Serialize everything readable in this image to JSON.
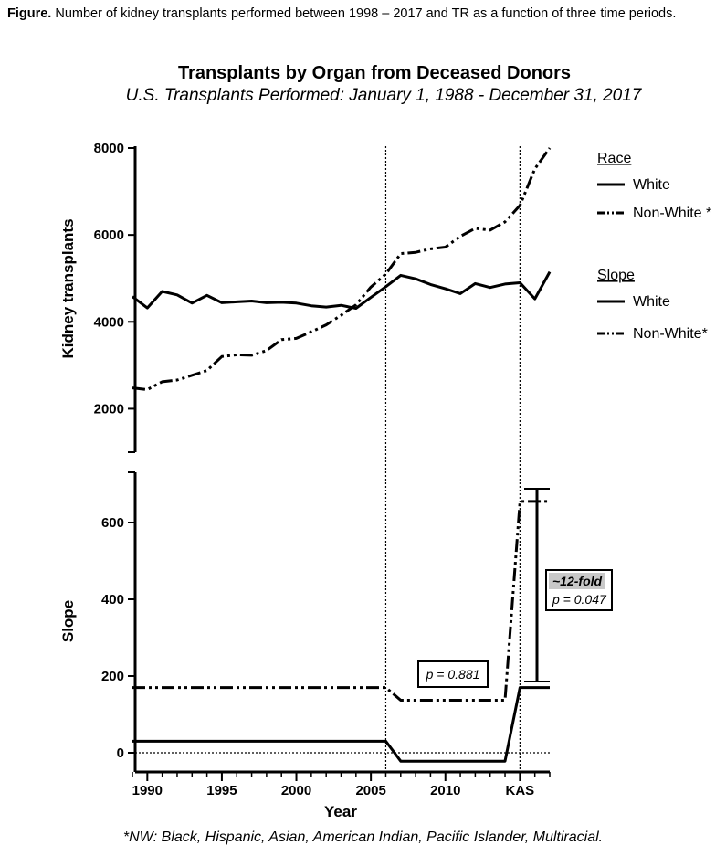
{
  "caption": {
    "label": "Figure.",
    "text": "Number of kidney transplants performed between 1998 – 2017 and TR as a function of three time periods."
  },
  "footnote": "*NW: Black, Hispanic, Asian, American Indian, Pacific Islander, Multiracial.",
  "chart_data": {
    "type": "line",
    "title": "Transplants by Organ from Deceased Donors",
    "subtitle": "U.S. Transplants Performed: January 1, 1988 - December 31, 2017",
    "xlabel": "Year",
    "x_ticks": [
      "1990",
      "1995",
      "2000",
      "2005",
      "2010",
      "KAS"
    ],
    "x_tick_values": [
      1990,
      1995,
      2000,
      2005,
      2010,
      2015
    ],
    "xlim": [
      1989,
      2017
    ],
    "vertical_reference_lines": [
      2006,
      2015
    ],
    "panels": [
      {
        "id": "top",
        "ylabel": "Kidney transplants",
        "ylim": [
          1000,
          8000
        ],
        "yticks": [
          "2000",
          "4000",
          "6000",
          "8000"
        ],
        "ytick_values": [
          2000,
          4000,
          6000,
          8000
        ],
        "legend_title": "Race",
        "legend_placement": "right",
        "series": [
          {
            "name": "White",
            "style": "solid",
            "x": [
              1989,
              1990,
              1991,
              1992,
              1993,
              1994,
              1995,
              1996,
              1997,
              1998,
              1999,
              2000,
              2001,
              2002,
              2003,
              2004,
              2005,
              2006,
              2007,
              2008,
              2009,
              2010,
              2011,
              2012,
              2013,
              2014,
              2015,
              2016,
              2017
            ],
            "values": [
              4580,
              4320,
              4700,
              4620,
              4430,
              4610,
              4440,
              4460,
              4480,
              4440,
              4450,
              4430,
              4370,
              4340,
              4380,
              4310,
              4560,
              4810,
              5070,
              4990,
              4860,
              4760,
              4650,
              4880,
              4790,
              4870,
              4900,
              4530,
              5150
            ]
          },
          {
            "name": "Non-White *",
            "style": "dash-dot-dot",
            "x": [
              1989,
              1990,
              1991,
              1992,
              1993,
              1994,
              1995,
              1996,
              1997,
              1998,
              1999,
              2000,
              2001,
              2002,
              2003,
              2004,
              2005,
              2006,
              2007,
              2008,
              2009,
              2010,
              2011,
              2012,
              2013,
              2014,
              2015,
              2016,
              2017
            ],
            "values": [
              2480,
              2440,
              2620,
              2660,
              2770,
              2880,
              3200,
              3240,
              3230,
              3340,
              3590,
              3620,
              3770,
              3930,
              4150,
              4390,
              4800,
              5100,
              5570,
              5600,
              5680,
              5720,
              5970,
              6150,
              6110,
              6300,
              6680,
              7520,
              8000
            ]
          }
        ]
      },
      {
        "id": "bottom",
        "ylabel": "Slope",
        "ylim": [
          -50,
          700
        ],
        "yticks": [
          "0",
          "200",
          "400",
          "600"
        ],
        "ytick_values": [
          0,
          200,
          400,
          600
        ],
        "zero_line": true,
        "legend_title": "Slope",
        "legend_placement": "right",
        "series": [
          {
            "name": "White",
            "style": "solid",
            "x": [
              1989,
              2006,
              2007,
              2014,
              2015,
              2017
            ],
            "values": [
              30,
              30,
              -22,
              -22,
              170,
              170
            ]
          },
          {
            "name": "Non-White*",
            "style": "dash-dot-dot",
            "x": [
              1989,
              2006,
              2007,
              2014,
              2015,
              2017
            ],
            "values": [
              170,
              170,
              137,
              137,
              655,
              655
            ]
          }
        ],
        "annotations": [
          {
            "text": "p = 0.881"
          },
          {
            "text": "~12-fold",
            "subtext": "p = 0.047"
          }
        ]
      }
    ]
  }
}
